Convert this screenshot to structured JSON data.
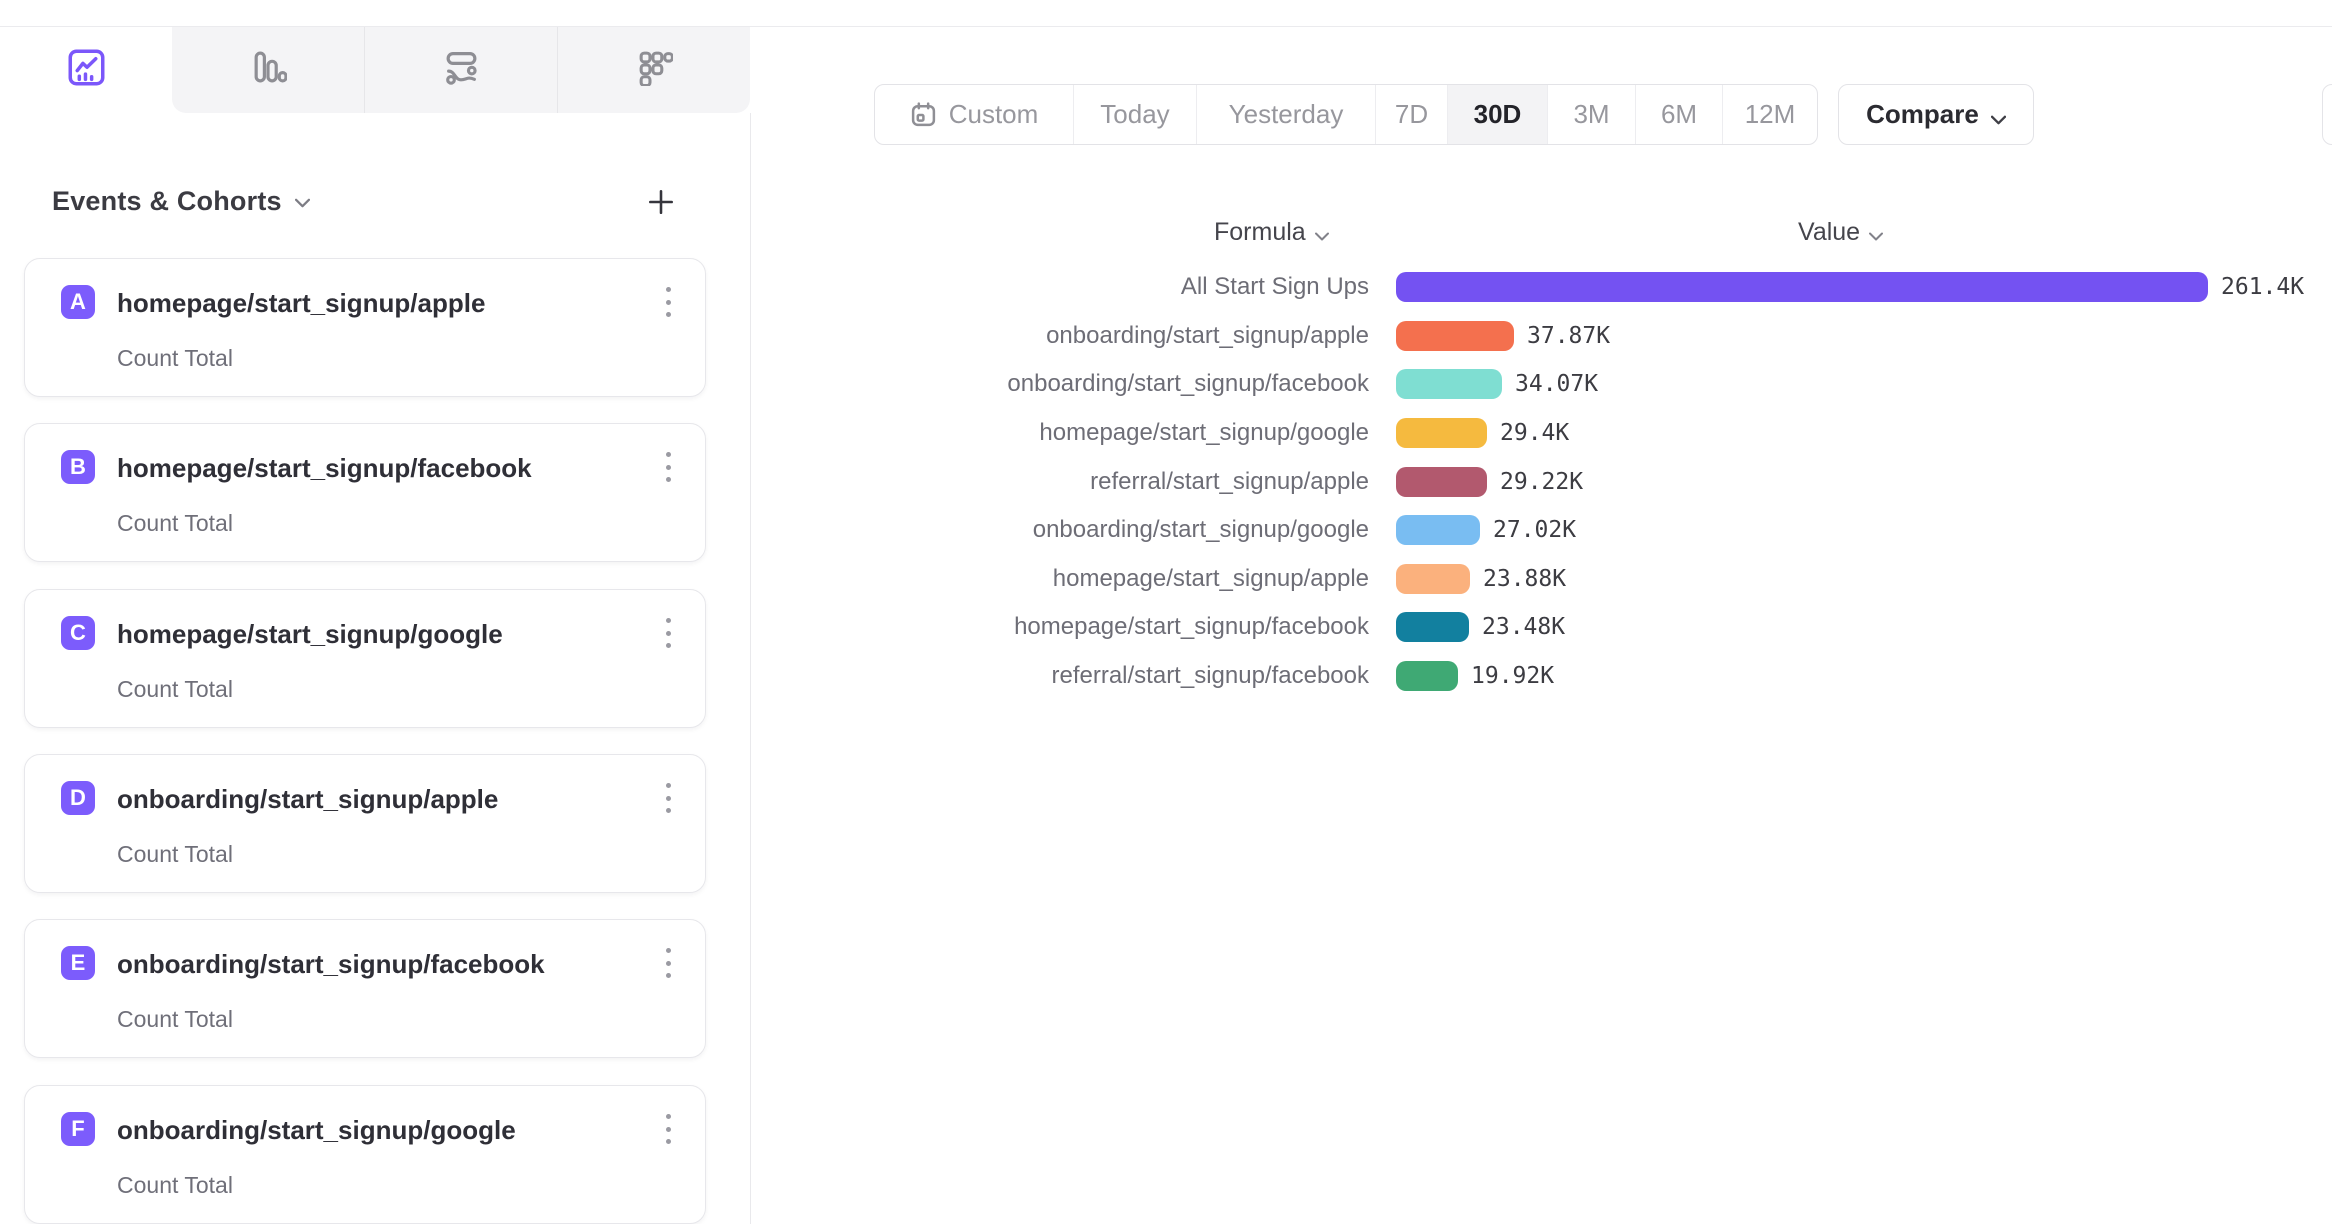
{
  "tabs": [
    {
      "id": "insights",
      "icon": "line-chart-icon",
      "active": true
    },
    {
      "id": "bar",
      "icon": "bar-chart-icon",
      "active": false
    },
    {
      "id": "flows",
      "icon": "flows-icon",
      "active": false
    },
    {
      "id": "retention",
      "icon": "retention-icon",
      "active": false
    }
  ],
  "sidebar": {
    "title": "Events & Cohorts",
    "add_label": "+",
    "cards": [
      {
        "letter": "A",
        "name": "homepage/start_signup/apple",
        "metric": "Count Total"
      },
      {
        "letter": "B",
        "name": "homepage/start_signup/facebook",
        "metric": "Count Total"
      },
      {
        "letter": "C",
        "name": "homepage/start_signup/google",
        "metric": "Count Total"
      },
      {
        "letter": "D",
        "name": "onboarding/start_signup/apple",
        "metric": "Count Total"
      },
      {
        "letter": "E",
        "name": "onboarding/start_signup/facebook",
        "metric": "Count Total"
      },
      {
        "letter": "F",
        "name": "onboarding/start_signup/google",
        "metric": "Count Total"
      }
    ],
    "badge_color": "#7c5cfc"
  },
  "toolbar": {
    "ranges": [
      "Custom",
      "Today",
      "Yesterday",
      "7D",
      "30D",
      "3M",
      "6M",
      "12M"
    ],
    "active_range": "30D",
    "compare_label": "Compare"
  },
  "chart_data": {
    "type": "bar",
    "orientation": "horizontal",
    "columns": {
      "formula": "Formula",
      "value": "Value"
    },
    "max_value": 261400,
    "series": [
      {
        "label": "All Start Sign Ups",
        "value": 261400,
        "display": "261.4K",
        "color": "#7452F2"
      },
      {
        "label": "onboarding/start_signup/apple",
        "value": 37870,
        "display": "37.87K",
        "color": "#F4704E"
      },
      {
        "label": "onboarding/start_signup/facebook",
        "value": 34070,
        "display": "34.07K",
        "color": "#7FDED2"
      },
      {
        "label": "homepage/start_signup/google",
        "value": 29400,
        "display": "29.4K",
        "color": "#F5BA3F"
      },
      {
        "label": "referral/start_signup/apple",
        "value": 29220,
        "display": "29.22K",
        "color": "#B2596E"
      },
      {
        "label": "onboarding/start_signup/google",
        "value": 27020,
        "display": "27.02K",
        "color": "#79BDF2"
      },
      {
        "label": "homepage/start_signup/apple",
        "value": 23880,
        "display": "23.88K",
        "color": "#FBB17D"
      },
      {
        "label": "homepage/start_signup/facebook",
        "value": 23480,
        "display": "23.48K",
        "color": "#12809F"
      },
      {
        "label": "referral/start_signup/facebook",
        "value": 19920,
        "display": "19.92K",
        "color": "#3FA974"
      }
    ]
  }
}
